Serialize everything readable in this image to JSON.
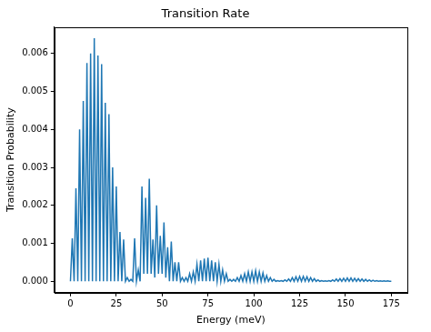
{
  "chart_data": {
    "type": "line",
    "title": "Transition Rate",
    "x_label": "Energy (meV)",
    "y_label": "Transition Probability",
    "color": "#1f77b4",
    "grid": false,
    "xlim": [
      -8.75,
      183.75
    ],
    "xticks": [
      0,
      25,
      50,
      75,
      100,
      125,
      150,
      175
    ],
    "ylim": [
      -0.0003,
      0.0067
    ],
    "yticks": [
      {
        "value": 0,
        "label": "0.000"
      },
      {
        "value": 0.001,
        "label": "0.001"
      },
      {
        "value": 0.002,
        "label": "0.002"
      },
      {
        "value": 0.003,
        "label": "0.003"
      },
      {
        "value": 0.004,
        "label": "0.004"
      },
      {
        "value": 0.005,
        "label": "0.005"
      },
      {
        "value": 0.006,
        "label": "0.006"
      }
    ],
    "x": [
      0,
      1,
      2,
      3,
      4,
      5,
      6,
      7,
      8,
      9,
      10,
      11,
      12,
      13,
      14,
      15,
      16,
      17,
      18,
      19,
      20,
      21,
      22,
      23,
      24,
      25,
      26,
      27,
      28,
      29,
      30,
      31,
      32,
      33,
      34,
      35,
      36,
      37,
      38,
      39,
      40,
      41,
      42,
      43,
      44,
      45,
      46,
      47,
      48,
      49,
      50,
      51,
      52,
      53,
      54,
      55,
      56,
      57,
      58,
      59,
      60,
      61,
      62,
      63,
      64,
      65,
      66,
      67,
      68,
      69,
      70,
      71,
      72,
      73,
      74,
      75,
      76,
      77,
      78,
      79,
      80,
      81,
      82,
      83,
      84,
      85,
      86,
      87,
      88,
      89,
      90,
      91,
      92,
      93,
      94,
      95,
      96,
      97,
      98,
      99,
      100,
      101,
      102,
      103,
      104,
      105,
      106,
      107,
      108,
      109,
      110,
      111,
      112,
      113,
      114,
      115,
      116,
      117,
      118,
      119,
      120,
      121,
      122,
      123,
      124,
      125,
      126,
      127,
      128,
      129,
      130,
      131,
      132,
      133,
      134,
      135,
      136,
      137,
      138,
      139,
      140,
      141,
      142,
      143,
      144,
      145,
      146,
      147,
      148,
      149,
      150,
      151,
      152,
      153,
      154,
      155,
      156,
      157,
      158,
      159,
      160,
      161,
      162,
      163,
      164,
      165,
      166,
      167,
      168,
      169,
      170,
      171,
      172,
      173,
      174,
      175
    ],
    "values": [
      0,
      0.00113,
      0,
      0.00245,
      0,
      0.004,
      0,
      0.00475,
      0,
      0.00575,
      0,
      0.006,
      0,
      0.0064,
      0,
      0.00595,
      0,
      0.00572,
      0,
      0.0047,
      0,
      0.0044,
      0,
      0.003,
      0,
      0.0025,
      0,
      0.0013,
      0,
      0.0011,
      0,
      0.0001,
      0,
      5e-05,
      0,
      0.00113,
      0,
      0.0003,
      0,
      0.0025,
      0.0002,
      0.0022,
      0.0002,
      0.0027,
      0.0002,
      0.0011,
      0.0001,
      0.002,
      0.0002,
      0.0012,
      0.0002,
      0.00155,
      0.0001,
      0.0009,
      0,
      0.00105,
      0,
      0.0005,
      0,
      0.0005,
      0,
      0.0001,
      0,
      0.0001,
      0,
      0.0002,
      0,
      0.00025,
      0,
      0.00045,
      0,
      0.00055,
      0,
      0.0006,
      0,
      0.00062,
      0,
      0.00055,
      0,
      0.0005,
      0,
      0.00045,
      0,
      0.0003,
      0,
      0.0002,
      0,
      5e-05,
      0,
      5e-05,
      0,
      0.0001,
      0,
      0.00015,
      0,
      0.0002,
      0,
      0.00025,
      0,
      0.00025,
      0,
      0.00028,
      0,
      0.00025,
      0,
      0.00022,
      0,
      0.00015,
      0,
      0.0001,
      0,
      5e-05,
      0,
      2e-05,
      0,
      2e-05,
      0,
      4e-05,
      0,
      6e-05,
      0,
      0.0001,
      0,
      0.00012,
      0,
      0.00013,
      0,
      0.00013,
      0,
      0.00012,
      0,
      0.0001,
      0,
      7e-05,
      0,
      4e-05,
      0,
      2e-05,
      0,
      1e-05,
      0,
      2e-05,
      0,
      4e-05,
      0,
      6e-05,
      0,
      7e-05,
      0,
      8e-05,
      0,
      9e-05,
      0,
      9e-05,
      0,
      8e-05,
      0,
      7e-05,
      0,
      6e-05,
      0,
      5e-05,
      0,
      4e-05,
      0,
      3e-05,
      0,
      2e-05,
      0,
      1e-05,
      0,
      1e-05,
      0,
      1e-05,
      0,
      0
    ]
  }
}
